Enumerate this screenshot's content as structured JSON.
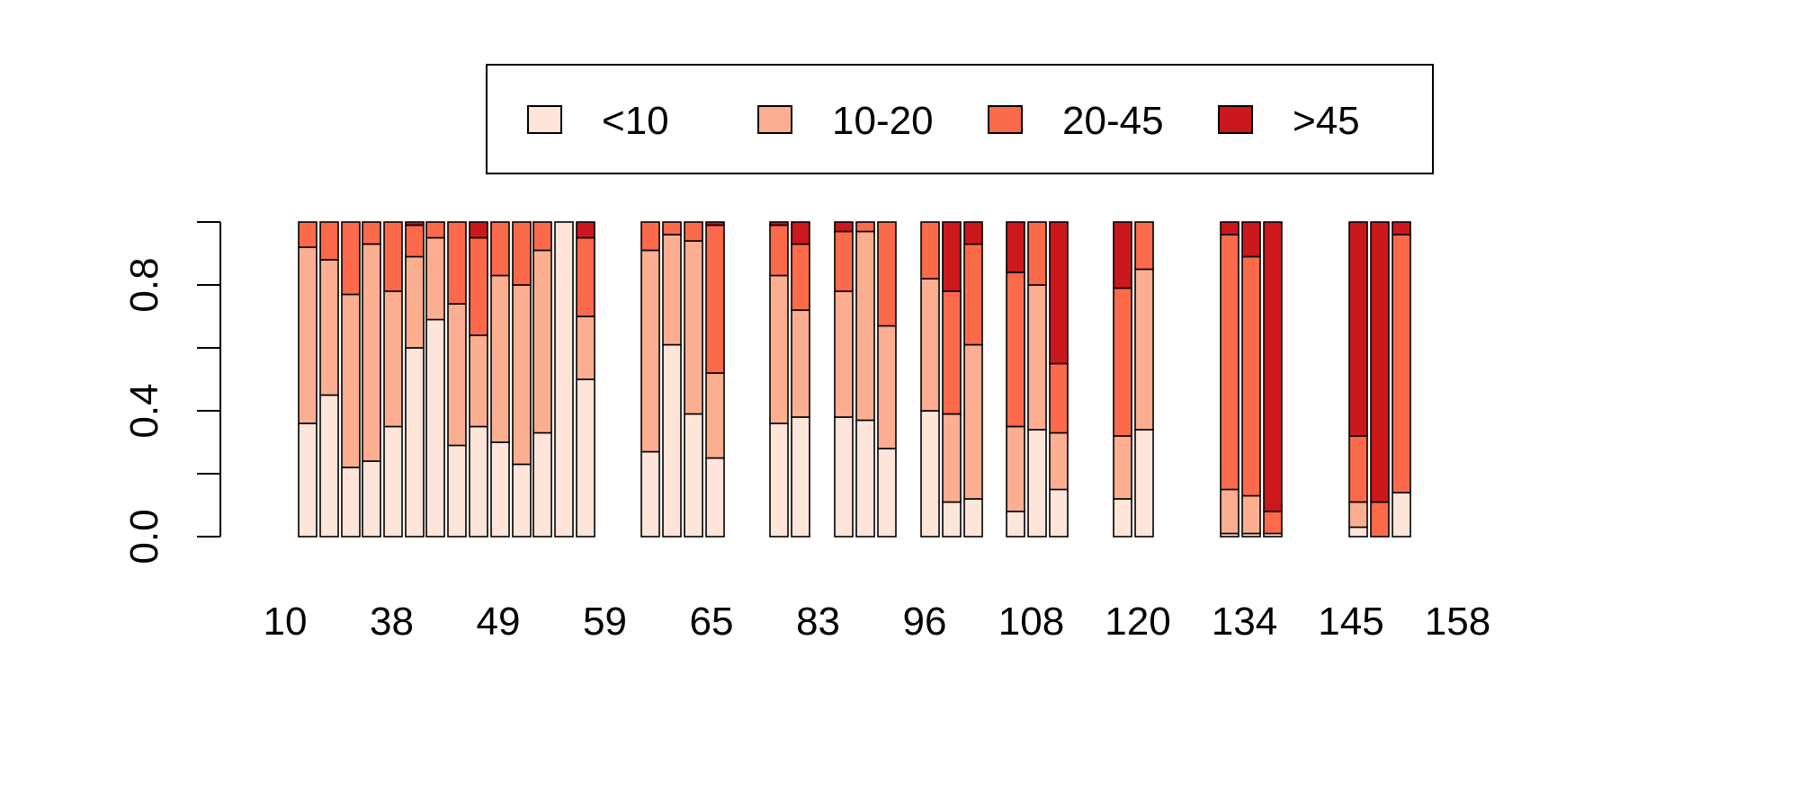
{
  "chart_data": {
    "type": "bar",
    "stacked": true,
    "normalized": true,
    "ylim": [
      0,
      1
    ],
    "yticks": [
      "0.0",
      "0.4",
      "0.8"
    ],
    "ytick_values": [
      0,
      0.2,
      0.4,
      0.6,
      0.8,
      1.0
    ],
    "xtick_labels": [
      "10",
      "38",
      "49",
      "59",
      "65",
      "83",
      "96",
      "108",
      "120",
      "134",
      "145",
      "158"
    ],
    "legend": {
      "placement": "top-center",
      "entries": [
        "<10",
        "10-20",
        "20-45",
        ">45"
      ]
    },
    "colors": [
      "#fee5d9",
      "#fcae91",
      "#fb6a4a",
      "#cb181d"
    ],
    "series": [
      {
        "name": "<10",
        "values": [
          0.36,
          0.45,
          0.22,
          0.24,
          0.35,
          0.6,
          0.69,
          0.29,
          0.35,
          0.3,
          0.23,
          0.33,
          1.0,
          0.5,
          0.27,
          0.61,
          0.39,
          0.25,
          0.36,
          0.38,
          0.38,
          0.37,
          0.28,
          0.4,
          0.11,
          0.12,
          0.08,
          0.34,
          0.15,
          0.12,
          0.34,
          0.01,
          0.01,
          0.01,
          0.03,
          0.0,
          0.14
        ]
      },
      {
        "name": "10-20",
        "values": [
          0.56,
          0.43,
          0.55,
          0.69,
          0.43,
          0.29,
          0.26,
          0.45,
          0.29,
          0.53,
          0.57,
          0.58,
          0.0,
          0.2,
          0.64,
          0.35,
          0.55,
          0.27,
          0.47,
          0.34,
          0.4,
          0.6,
          0.39,
          0.42,
          0.28,
          0.49,
          0.27,
          0.46,
          0.18,
          0.2,
          0.51,
          0.14,
          0.12,
          0.0,
          0.08,
          0.0,
          0.0
        ]
      },
      {
        "name": "20-45",
        "values": [
          0.08,
          0.12,
          0.23,
          0.07,
          0.22,
          0.1,
          0.05,
          0.26,
          0.31,
          0.17,
          0.2,
          0.09,
          0.0,
          0.25,
          0.09,
          0.04,
          0.06,
          0.47,
          0.16,
          0.21,
          0.19,
          0.03,
          0.33,
          0.18,
          0.39,
          0.32,
          0.49,
          0.2,
          0.22,
          0.47,
          0.15,
          0.81,
          0.76,
          0.07,
          0.21,
          0.11,
          0.82
        ]
      },
      {
        "name": ">45",
        "values": [
          0.0,
          0.0,
          0.0,
          0.0,
          0.0,
          0.01,
          0.0,
          0.0,
          0.05,
          0.0,
          0.0,
          0.0,
          0.0,
          0.05,
          0.0,
          0.0,
          0.0,
          0.01,
          0.01,
          0.07,
          0.03,
          0.0,
          0.0,
          0.0,
          0.22,
          0.07,
          0.16,
          0.0,
          0.45,
          0.21,
          0.0,
          0.04,
          0.11,
          0.92,
          0.68,
          0.89,
          0.04
        ]
      }
    ]
  }
}
